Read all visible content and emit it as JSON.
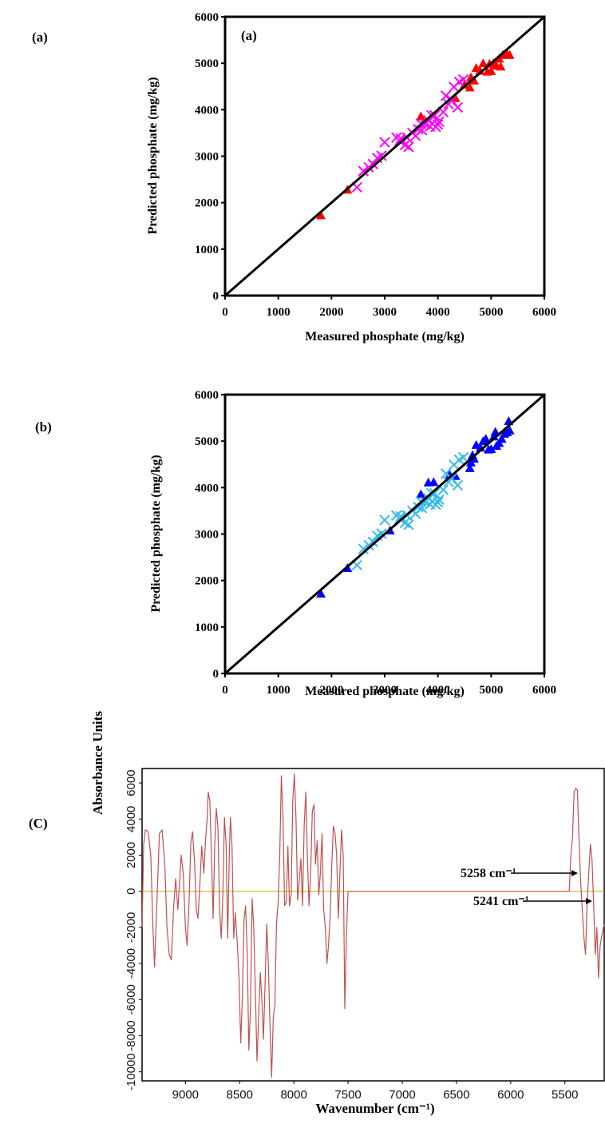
{
  "figure": {
    "panel_labels": [
      "(a)",
      "(b)",
      "(C)"
    ]
  },
  "chart_data": [
    {
      "type": "scatter",
      "panel": "(a)",
      "inset_label": "(a)",
      "xlabel": "Measured phosphate (mg/kg)",
      "ylabel": "Predicted phosphate (mg/kg)",
      "xlim": [
        0,
        6000
      ],
      "ylim": [
        0,
        6000
      ],
      "xticks": [
        0,
        1000,
        2000,
        3000,
        4000,
        5000,
        6000
      ],
      "yticks": [
        0,
        1000,
        2000,
        3000,
        4000,
        5000,
        6000
      ],
      "grid": false,
      "reference_line": [
        [
          0,
          0
        ],
        [
          6000,
          6000
        ]
      ],
      "series": [
        {
          "marker": "triangle",
          "color": "#ff0000",
          "points": [
            [
              1800,
              1730
            ],
            [
              2300,
              2280
            ],
            [
              3680,
              3860
            ],
            [
              4330,
              4250
            ],
            [
              4500,
              4540
            ],
            [
              4600,
              4480
            ],
            [
              4620,
              4700
            ],
            [
              4680,
              4630
            ],
            [
              4720,
              4900
            ],
            [
              4790,
              4840
            ],
            [
              4850,
              5000
            ],
            [
              4930,
              4820
            ],
            [
              4970,
              4990
            ],
            [
              5000,
              4830
            ],
            [
              5050,
              5000
            ],
            [
              5100,
              4950
            ],
            [
              5150,
              5100
            ],
            [
              5180,
              4930
            ],
            [
              5220,
              5180
            ],
            [
              5300,
              5200
            ],
            [
              5350,
              5180
            ]
          ]
        },
        {
          "marker": "x",
          "color": "#ff00ff",
          "points": [
            [
              2480,
              2330
            ],
            [
              2600,
              2680
            ],
            [
              2700,
              2760
            ],
            [
              2780,
              2830
            ],
            [
              2860,
              2960
            ],
            [
              2940,
              3010
            ],
            [
              3000,
              3300
            ],
            [
              3220,
              3400
            ],
            [
              3280,
              3330
            ],
            [
              3300,
              3380
            ],
            [
              3380,
              3240
            ],
            [
              3420,
              3400
            ],
            [
              3450,
              3200
            ],
            [
              3520,
              3500
            ],
            [
              3580,
              3440
            ],
            [
              3630,
              3580
            ],
            [
              3680,
              3700
            ],
            [
              3700,
              3560
            ],
            [
              3760,
              3690
            ],
            [
              3820,
              3770
            ],
            [
              3850,
              3640
            ],
            [
              3880,
              3880
            ],
            [
              3900,
              3700
            ],
            [
              3940,
              3880
            ],
            [
              3960,
              3630
            ],
            [
              4000,
              3680
            ],
            [
              4020,
              3740
            ],
            [
              4100,
              3950
            ],
            [
              4150,
              4300
            ],
            [
              4200,
              4120
            ],
            [
              4260,
              4200
            ],
            [
              4300,
              4490
            ],
            [
              4370,
              4050
            ],
            [
              4400,
              4600
            ],
            [
              4480,
              4650
            ]
          ]
        }
      ]
    },
    {
      "type": "scatter",
      "panel": "(b)",
      "xlabel": "Measured phosphate (mg/kg)",
      "ylabel": "Predicted phosphate (mg/kg)",
      "xlim": [
        0,
        6000
      ],
      "ylim": [
        0,
        6000
      ],
      "xticks": [
        0,
        1000,
        2000,
        3000,
        4000,
        5000,
        6000
      ],
      "yticks": [
        0,
        1000,
        2000,
        3000,
        4000,
        5000,
        6000
      ],
      "grid": false,
      "reference_line": [
        [
          0,
          0
        ],
        [
          6000,
          6000
        ]
      ],
      "series": [
        {
          "marker": "triangle",
          "color": "#0000ff",
          "points": [
            [
              1800,
              1720
            ],
            [
              2300,
              2270
            ],
            [
              3100,
              3080
            ],
            [
              3680,
              3860
            ],
            [
              3820,
              4110
            ],
            [
              3920,
              4120
            ],
            [
              4220,
              4280
            ],
            [
              4330,
              4250
            ],
            [
              4600,
              4420
            ],
            [
              4620,
              4540
            ],
            [
              4650,
              4700
            ],
            [
              4680,
              4620
            ],
            [
              4720,
              4920
            ],
            [
              4800,
              4860
            ],
            [
              4850,
              5000
            ],
            [
              4900,
              5050
            ],
            [
              4950,
              4820
            ],
            [
              5000,
              4830
            ],
            [
              5050,
              5100
            ],
            [
              5080,
              5200
            ],
            [
              5100,
              4900
            ],
            [
              5150,
              4960
            ],
            [
              5200,
              5050
            ],
            [
              5250,
              5160
            ],
            [
              5300,
              5190
            ],
            [
              5330,
              5430
            ],
            [
              5350,
              5230
            ]
          ]
        },
        {
          "marker": "x",
          "color": "#33bbee",
          "points": [
            [
              2480,
              2330
            ],
            [
              2600,
              2680
            ],
            [
              2700,
              2760
            ],
            [
              2780,
              2830
            ],
            [
              2860,
              2960
            ],
            [
              2940,
              3010
            ],
            [
              3000,
              3300
            ],
            [
              3220,
              3400
            ],
            [
              3280,
              3330
            ],
            [
              3300,
              3380
            ],
            [
              3380,
              3240
            ],
            [
              3420,
              3400
            ],
            [
              3450,
              3200
            ],
            [
              3520,
              3500
            ],
            [
              3580,
              3440
            ],
            [
              3630,
              3580
            ],
            [
              3680,
              3700
            ],
            [
              3700,
              3560
            ],
            [
              3760,
              3690
            ],
            [
              3820,
              3770
            ],
            [
              3850,
              3640
            ],
            [
              3880,
              3880
            ],
            [
              3900,
              3700
            ],
            [
              3940,
              3880
            ],
            [
              3960,
              3630
            ],
            [
              4000,
              3680
            ],
            [
              4020,
              3740
            ],
            [
              4100,
              3950
            ],
            [
              4150,
              4300
            ],
            [
              4200,
              4120
            ],
            [
              4260,
              4200
            ],
            [
              4300,
              4490
            ],
            [
              4370,
              4050
            ],
            [
              4400,
              4600
            ],
            [
              4480,
              4650
            ]
          ]
        }
      ]
    },
    {
      "type": "line",
      "panel": "(C)",
      "xlabel": "Wavenumber (cm⁻¹)",
      "ylabel": "Absorbance  Units",
      "xlim": [
        9400,
        5130
      ],
      "ylim": [
        -10500,
        6800
      ],
      "xticks": [
        9000,
        8500,
        8000,
        7500,
        7000,
        6500,
        6000,
        5500
      ],
      "yticks": [
        -10000,
        -8000,
        -6000,
        -4000,
        -2000,
        0,
        2000,
        4000,
        6000
      ],
      "grid": false,
      "zero_line_color": "#c8b400",
      "line_color": "#c05050",
      "annotations": [
        {
          "text": "5258 cm⁻¹",
          "x": 5258,
          "y": -2200
        },
        {
          "text": "5241 cm⁻¹",
          "x": 5241,
          "y": -4200
        }
      ],
      "segments": [
        [
          [
            9400,
            -2000
          ],
          [
            9385,
            2600
          ],
          [
            9370,
            3400
          ],
          [
            9345,
            3300
          ],
          [
            9320,
            2000
          ],
          [
            9300,
            -2000
          ],
          [
            9285,
            -4200
          ],
          [
            9265,
            -1000
          ],
          [
            9240,
            3200
          ],
          [
            9215,
            3400
          ],
          [
            9190,
            1500
          ],
          [
            9170,
            -2000
          ],
          [
            9150,
            -3500
          ],
          [
            9130,
            -3800
          ],
          [
            9110,
            -1000
          ],
          [
            9090,
            700
          ],
          [
            9070,
            -1000
          ],
          [
            9055,
            400
          ],
          [
            9040,
            2000
          ],
          [
            9020,
            1000
          ],
          [
            9000,
            -2000
          ],
          [
            8985,
            -3000
          ],
          [
            8970,
            -1200
          ],
          [
            8950,
            2700
          ],
          [
            8935,
            3300
          ],
          [
            8915,
            1500
          ],
          [
            8900,
            -1000
          ],
          [
            8885,
            -1500
          ],
          [
            8870,
            0
          ],
          [
            8850,
            2500
          ],
          [
            8830,
            1000
          ],
          [
            8815,
            2800
          ],
          [
            8800,
            4000
          ],
          [
            8790,
            5500
          ],
          [
            8775,
            5000
          ],
          [
            8760,
            2000
          ],
          [
            8745,
            -1500
          ],
          [
            8730,
            2600
          ],
          [
            8715,
            4600
          ],
          [
            8700,
            3500
          ],
          [
            8685,
            -1000
          ],
          [
            8670,
            -2600
          ],
          [
            8655,
            -200
          ],
          [
            8640,
            4100
          ],
          [
            8625,
            2500
          ],
          [
            8610,
            -2600
          ],
          [
            8595,
            2000
          ],
          [
            8585,
            4100
          ],
          [
            8570,
            2500
          ],
          [
            8555,
            -2600
          ],
          [
            8540,
            -1200
          ],
          [
            8520,
            -3000
          ],
          [
            8505,
            -5000
          ],
          [
            8490,
            -8400
          ],
          [
            8475,
            -6000
          ],
          [
            8460,
            -1600
          ],
          [
            8445,
            -800
          ],
          [
            8430,
            -3600
          ],
          [
            8415,
            -8800
          ],
          [
            8400,
            -6500
          ],
          [
            8385,
            -400
          ],
          [
            8370,
            -2000
          ],
          [
            8355,
            -5500
          ],
          [
            8340,
            -9400
          ],
          [
            8325,
            -7000
          ],
          [
            8310,
            -4500
          ],
          [
            8295,
            -6000
          ],
          [
            8280,
            -8200
          ],
          [
            8265,
            -5000
          ],
          [
            8250,
            -1800
          ],
          [
            8235,
            -4000
          ],
          [
            8220,
            -7500
          ],
          [
            8205,
            -10300
          ],
          [
            8190,
            -7000
          ],
          [
            8175,
            -6300
          ],
          [
            8160,
            -1800
          ],
          [
            8145,
            -600
          ],
          [
            8130,
            2000
          ],
          [
            8115,
            6400
          ],
          [
            8100,
            4000
          ],
          [
            8085,
            -800
          ],
          [
            8070,
            -600
          ],
          [
            8055,
            2500
          ],
          [
            8040,
            -800
          ],
          [
            8025,
            -200
          ],
          [
            8010,
            5000
          ],
          [
            7995,
            6500
          ],
          [
            7980,
            4000
          ],
          [
            7965,
            -500
          ],
          [
            7950,
            600
          ],
          [
            7935,
            1800
          ],
          [
            7920,
            -800
          ],
          [
            7905,
            3600
          ],
          [
            7890,
            5500
          ],
          [
            7875,
            2000
          ],
          [
            7860,
            -800
          ],
          [
            7845,
            1000
          ],
          [
            7830,
            4400
          ],
          [
            7815,
            4800
          ],
          [
            7800,
            1500
          ],
          [
            7785,
            2800
          ],
          [
            7770,
            -200
          ],
          [
            7755,
            1000
          ],
          [
            7740,
            3200
          ],
          [
            7725,
            -1000
          ],
          [
            7710,
            -2000
          ],
          [
            7695,
            -4000
          ],
          [
            7680,
            -3000
          ],
          [
            7665,
            -1300
          ],
          [
            7650,
            1500
          ],
          [
            7635,
            3600
          ],
          [
            7620,
            3200
          ],
          [
            7605,
            2000
          ],
          [
            7590,
            -1500
          ],
          [
            7575,
            1000
          ],
          [
            7560,
            3400
          ],
          [
            7545,
            2000
          ],
          [
            7530,
            -6500
          ],
          [
            7515,
            -2500
          ],
          [
            7500,
            0
          ]
        ],
        [
          [
            5460,
            0
          ],
          [
            5445,
            2000
          ],
          [
            5430,
            3000
          ],
          [
            5415,
            5500
          ],
          [
            5400,
            5700
          ],
          [
            5385,
            5600
          ],
          [
            5370,
            3000
          ],
          [
            5355,
            600
          ],
          [
            5340,
            -1000
          ],
          [
            5325,
            -2500
          ],
          [
            5310,
            -3500
          ],
          [
            5295,
            -700
          ],
          [
            5280,
            1000
          ],
          [
            5265,
            2600
          ],
          [
            5250,
            1800
          ],
          [
            5235,
            -600
          ],
          [
            5220,
            -3500
          ],
          [
            5205,
            -2000
          ],
          [
            5190,
            -4800
          ],
          [
            5175,
            -3000
          ],
          [
            5160,
            -2500
          ],
          [
            5145,
            -2000
          ],
          [
            5130,
            -1800
          ]
        ]
      ]
    }
  ]
}
